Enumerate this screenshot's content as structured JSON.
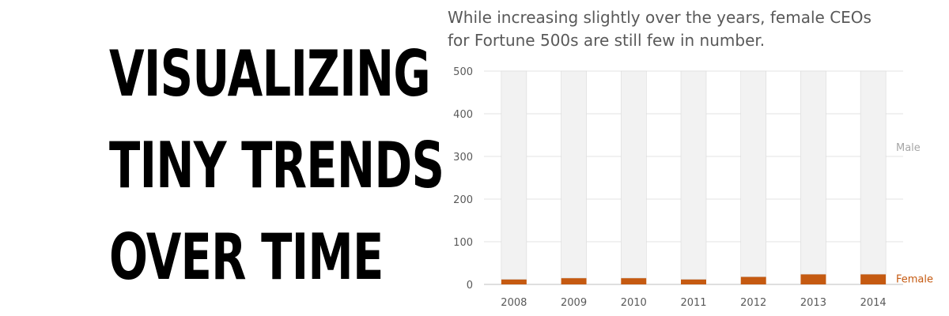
{
  "headline": [
    "VISUALIZING",
    "TINY TRENDS",
    "OVER TIME"
  ],
  "chart_data": {
    "type": "bar",
    "stacked": true,
    "title": "While increasing slightly over the years, female CEOs for Fortune 500s are still few in number.",
    "categories": [
      "2008",
      "2009",
      "2010",
      "2011",
      "2012",
      "2013",
      "2014"
    ],
    "series": [
      {
        "name": "Female",
        "values": [
          12,
          15,
          15,
          12,
          18,
          24,
          24
        ],
        "color": "#c55a11"
      },
      {
        "name": "Male",
        "values": [
          488,
          485,
          485,
          488,
          482,
          476,
          476
        ],
        "color": "#f2f2f2"
      }
    ],
    "ylim": [
      0,
      500
    ],
    "yticks": [
      "0",
      "100",
      "200",
      "300",
      "400",
      "500"
    ],
    "grid": true,
    "legend": "direct labels at right"
  }
}
